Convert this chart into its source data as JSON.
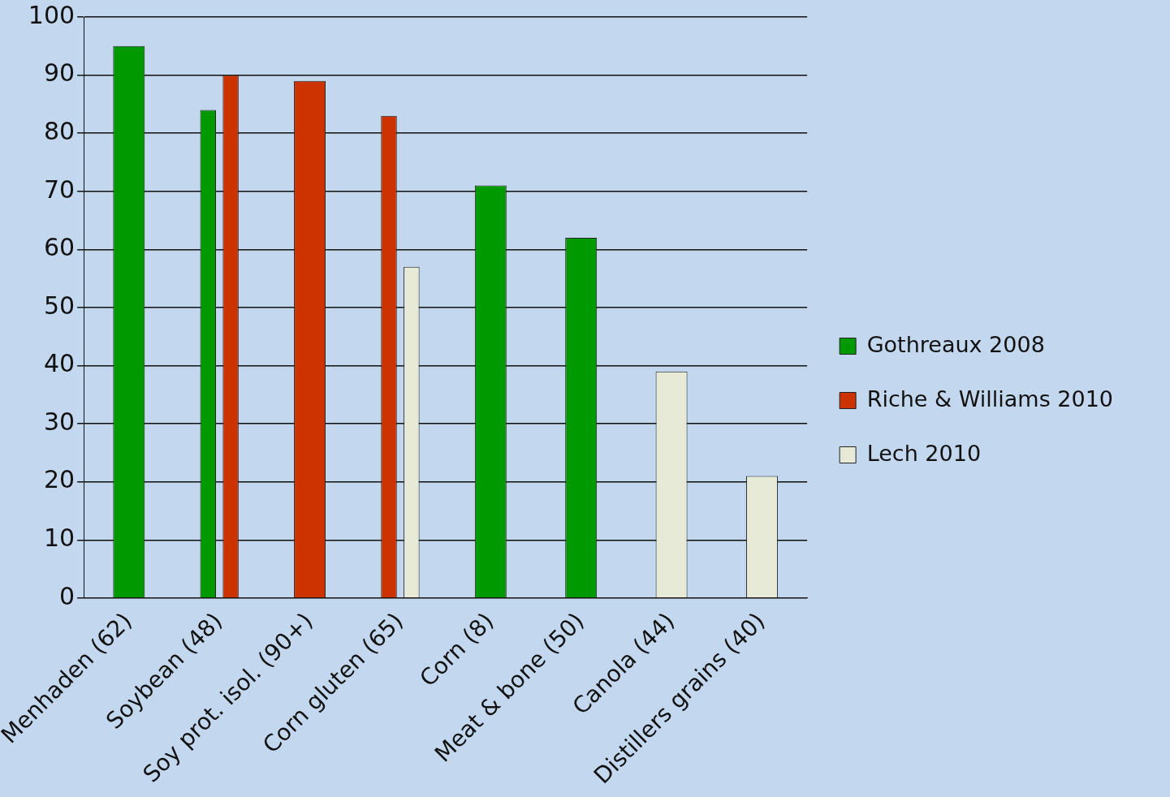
{
  "chart_data": {
    "type": "bar",
    "categories": [
      "Menhaden (62)",
      "Soybean (48)",
      "Soy prot. isol. (90+)",
      "Corn gluten (65)",
      "Corn (8)",
      "Meat & bone (50)",
      "Canola (44)",
      "Distillers grains (40)"
    ],
    "series": [
      {
        "name": "Gothreaux 2008",
        "color": "#009900",
        "values": [
          95,
          84,
          null,
          null,
          71,
          62,
          null,
          null
        ]
      },
      {
        "name": "Riche & Williams 2010",
        "color": "#cc3300",
        "values": [
          null,
          90,
          89,
          83,
          null,
          null,
          null,
          null
        ]
      },
      {
        "name": "Lech 2010",
        "color": "#e8ead8",
        "values": [
          null,
          null,
          null,
          57,
          null,
          null,
          39,
          21
        ]
      }
    ],
    "ylim": [
      0,
      100
    ],
    "yticks": [
      0,
      10,
      20,
      30,
      40,
      50,
      60,
      70,
      80,
      90,
      100
    ],
    "grid": "y",
    "legend": "right"
  }
}
